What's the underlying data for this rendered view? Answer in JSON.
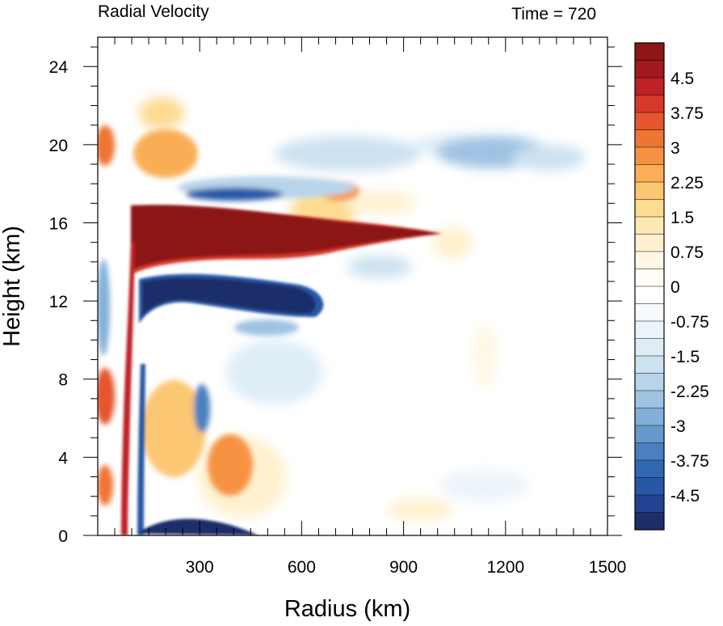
{
  "chart_data": {
    "type": "heatmap",
    "title_left": "Radial Velocity",
    "title_right": "Time = 720",
    "xlabel": "Radius (km)",
    "ylabel": "Height (km)",
    "xlim": [
      0,
      1500
    ],
    "ylim": [
      0,
      25.5
    ],
    "x_ticks": [
      300,
      600,
      900,
      1200,
      1500
    ],
    "y_ticks": [
      0,
      4,
      8,
      12,
      16,
      20,
      24
    ],
    "colorbar": {
      "range": [
        -5.25,
        5.25
      ],
      "step": 0.375,
      "labels": [
        "4.5",
        "3.75",
        "3",
        "2.25",
        "1.5",
        "0.75",
        "0",
        "-0.75",
        "-1.5",
        "-2.25",
        "-3",
        "-3.75",
        "-4.5"
      ],
      "label_values": [
        4.5,
        3.75,
        3,
        2.25,
        1.5,
        0.75,
        0,
        -0.75,
        -1.5,
        -2.25,
        -3,
        -3.75,
        -4.5
      ],
      "colors": [
        "#1d2e6a",
        "#23428f",
        "#2857a5",
        "#3368b1",
        "#4a80bf",
        "#6599cc",
        "#82b0d8",
        "#9ec3e2",
        "#b7d4ea",
        "#cde2f1",
        "#dfedf7",
        "#ecf4fa",
        "#f7fafd",
        "#ffffff",
        "#fffdf6",
        "#fff8e6",
        "#fff1cf",
        "#fee9b4",
        "#fddb91",
        "#fcc773",
        "#f9ae57",
        "#f59342",
        "#ef7535",
        "#e5552f",
        "#d6392b",
        "#bf2127",
        "#a01a1f",
        "#8c1717"
      ]
    },
    "features": [
      {
        "sign": "positive",
        "value": 5.0,
        "x_range": [
          100,
          1050
        ],
        "y_range": [
          13,
          17
        ]
      },
      {
        "sign": "negative",
        "value": -5.0,
        "x_range": [
          100,
          650
        ],
        "y_range": [
          10.5,
          13
        ]
      },
      {
        "sign": "negative",
        "value": -2.5,
        "x_range": [
          150,
          800
        ],
        "y_range": [
          17,
          20.5
        ]
      },
      {
        "sign": "positive",
        "value": 2.5,
        "x_range": [
          600,
          900
        ],
        "y_range": [
          16.5,
          19.5
        ]
      },
      {
        "sign": "negative",
        "value": -2.0,
        "x_range": [
          1050,
          1400
        ],
        "y_range": [
          18.5,
          21
        ]
      },
      {
        "sign": "positive",
        "value": 3.0,
        "x_range": [
          0,
          250
        ],
        "y_range": [
          0,
          21
        ]
      },
      {
        "sign": "positive",
        "value": 2.5,
        "x_range": [
          250,
          450
        ],
        "y_range": [
          1,
          8
        ]
      },
      {
        "sign": "negative",
        "value": -4.0,
        "x_range": [
          50,
          500
        ],
        "y_range": [
          0,
          1
        ]
      }
    ]
  }
}
